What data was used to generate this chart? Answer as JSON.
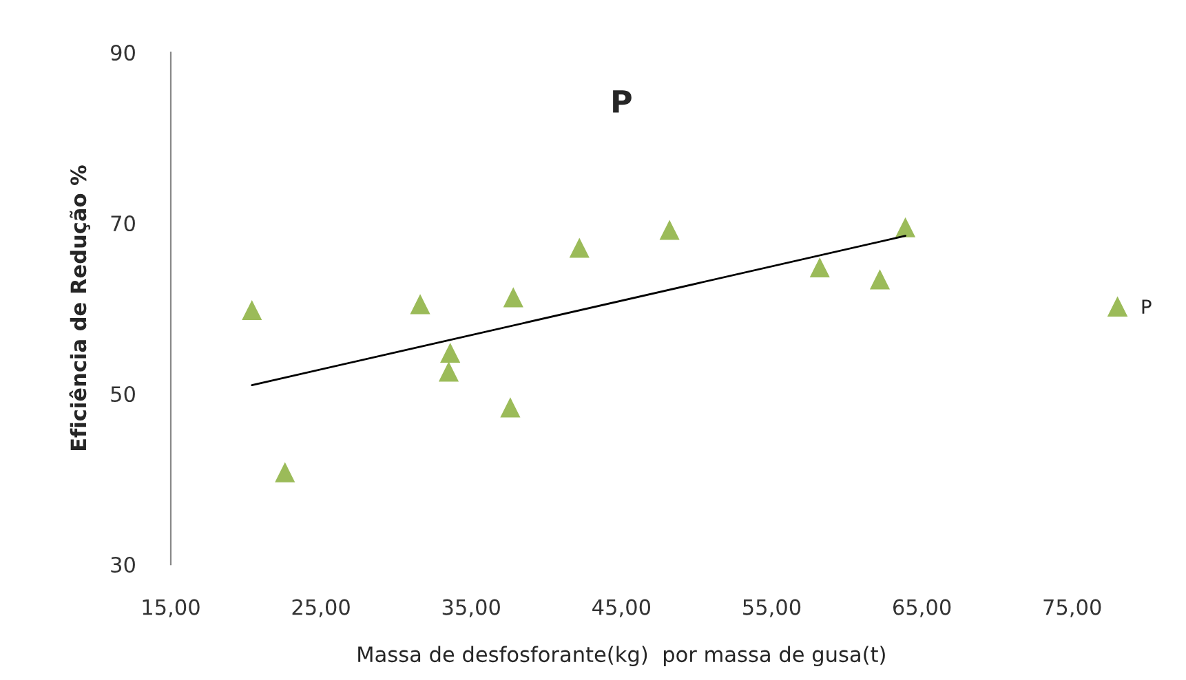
{
  "chart_data": {
    "type": "scatter",
    "title": "P",
    "xlabel": "Massa de desfosforante(kg)  por massa de gusa(t)",
    "ylabel": "Eficiência de Redução %",
    "xlim": [
      15,
      75
    ],
    "ylim": [
      30,
      90
    ],
    "xticks": [
      {
        "value": 15,
        "label": "15,00"
      },
      {
        "value": 25,
        "label": "25,00"
      },
      {
        "value": 35,
        "label": "35,00"
      },
      {
        "value": 45,
        "label": "45,00"
      },
      {
        "value": 55,
        "label": "55,00"
      },
      {
        "value": 65,
        "label": "65,00"
      },
      {
        "value": 75,
        "label": "75,00"
      }
    ],
    "yticks": [
      30,
      50,
      70,
      90
    ],
    "grid": false,
    "legend": "right",
    "series": [
      {
        "name": "P",
        "marker": "triangle",
        "color": "#9bbb59",
        "x": [
          20.4,
          22.6,
          31.6,
          33.6,
          33.5,
          37.6,
          37.8,
          42.2,
          48.2,
          58.2,
          62.2,
          63.9
        ],
        "values": [
          59.8,
          40.8,
          60.5,
          54.8,
          52.6,
          48.4,
          61.3,
          67.1,
          69.2,
          64.8,
          63.4,
          69.5
        ]
      },
      {
        "type": "line",
        "color": "#000000",
        "x": [
          20.4,
          63.9
        ],
        "values": [
          51.0,
          68.5
        ]
      }
    ]
  }
}
